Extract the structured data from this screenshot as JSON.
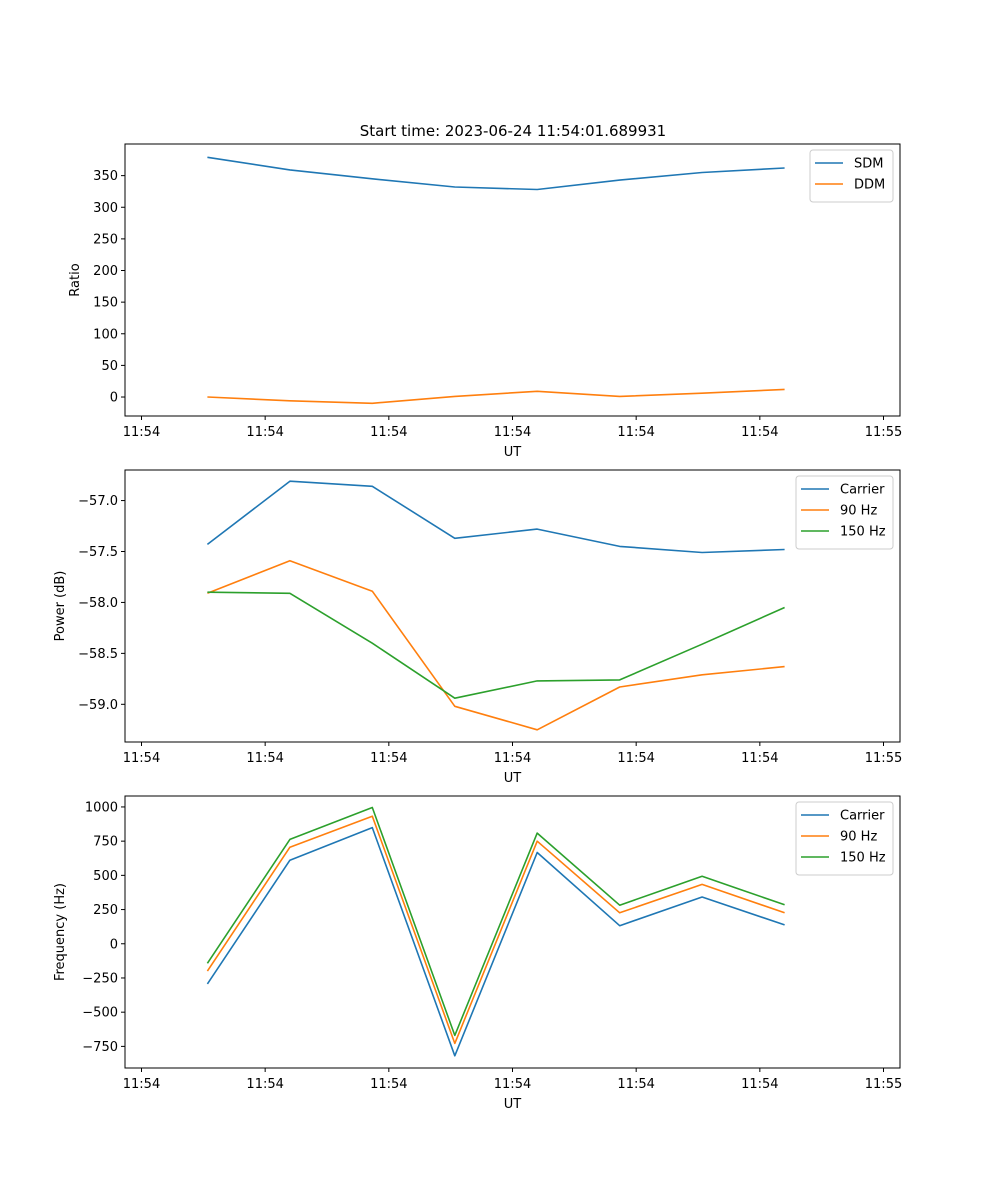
{
  "figure": {
    "title": "Start time: 2023-06-24 11:54:01.689931"
  },
  "chart_data": [
    {
      "type": "line",
      "xlabel": "UT",
      "ylabel": "Ratio",
      "x": [
        1,
        2,
        3,
        4,
        5,
        6,
        7,
        8
      ],
      "xticks": [
        0.2,
        1.7,
        3.2,
        4.7,
        6.2,
        7.7,
        9.2
      ],
      "xtick_labels": [
        "11:54",
        "11:54",
        "11:54",
        "11:54",
        "11:54",
        "11:54",
        "11:55"
      ],
      "xlim": [
        0.0,
        9.4
      ],
      "ylim": [
        -30,
        400
      ],
      "yticks": [
        0,
        50,
        100,
        150,
        200,
        250,
        300,
        350
      ],
      "ytick_labels": [
        "0",
        "50",
        "100",
        "150",
        "200",
        "250",
        "300",
        "350"
      ],
      "legend": "top-right",
      "series": [
        {
          "name": "SDM",
          "color": "#1f77b4",
          "values": [
            379,
            359,
            345,
            332,
            328,
            343,
            355,
            362
          ]
        },
        {
          "name": "DDM",
          "color": "#ff7f0e",
          "values": [
            0,
            -6,
            -10,
            1,
            9,
            1,
            6,
            12
          ]
        }
      ]
    },
    {
      "type": "line",
      "xlabel": "UT",
      "ylabel": "Power (dB)",
      "x": [
        1,
        2,
        3,
        4,
        5,
        6,
        7,
        8
      ],
      "xticks": [
        0.2,
        1.7,
        3.2,
        4.7,
        6.2,
        7.7,
        9.2
      ],
      "xtick_labels": [
        "11:54",
        "11:54",
        "11:54",
        "11:54",
        "11:54",
        "11:54",
        "11:55"
      ],
      "xlim": [
        0.0,
        9.4
      ],
      "ylim": [
        -59.37,
        -56.7
      ],
      "yticks": [
        -57.0,
        -57.5,
        -58.0,
        -58.5,
        -59.0
      ],
      "ytick_labels": [
        "−57.0",
        "−57.5",
        "−58.0",
        "−58.5",
        "−59.0"
      ],
      "legend": "top-right",
      "series": [
        {
          "name": "Carrier",
          "color": "#1f77b4",
          "values": [
            -57.43,
            -56.81,
            -56.86,
            -57.37,
            -57.28,
            -57.45,
            -57.51,
            -57.48
          ]
        },
        {
          "name": "90 Hz",
          "color": "#ff7f0e",
          "values": [
            -57.91,
            -57.59,
            -57.89,
            -59.02,
            -59.25,
            -58.83,
            -58.71,
            -58.63
          ]
        },
        {
          "name": "150 Hz",
          "color": "#2ca02c",
          "values": [
            -57.9,
            -57.91,
            -58.4,
            -58.94,
            -58.77,
            -58.76,
            -58.41,
            -58.05
          ]
        }
      ]
    },
    {
      "type": "line",
      "xlabel": "UT",
      "ylabel": "Frequency (Hz)",
      "x": [
        1,
        2,
        3,
        4,
        5,
        6,
        7,
        8
      ],
      "xticks": [
        0.2,
        1.7,
        3.2,
        4.7,
        6.2,
        7.7,
        9.2
      ],
      "xtick_labels": [
        "11:54",
        "11:54",
        "11:54",
        "11:54",
        "11:54",
        "11:54",
        "11:55"
      ],
      "xlim": [
        0.0,
        9.4
      ],
      "ylim": [
        -908,
        1080
      ],
      "yticks": [
        1000,
        750,
        500,
        250,
        0,
        -250,
        -500,
        -750
      ],
      "ytick_labels": [
        "1000",
        "750",
        "500",
        "250",
        "0",
        "−250",
        "−500",
        "−750"
      ],
      "legend": "top-right",
      "series": [
        {
          "name": "Carrier",
          "color": "#1f77b4",
          "values": [
            -293,
            611,
            849,
            -819,
            667,
            132,
            342,
            138
          ]
        },
        {
          "name": "90 Hz",
          "color": "#ff7f0e",
          "values": [
            -200,
            706,
            932,
            -728,
            750,
            226,
            434,
            226
          ]
        },
        {
          "name": "150 Hz",
          "color": "#2ca02c",
          "values": [
            -143,
            763,
            996,
            -670,
            809,
            282,
            493,
            285
          ]
        }
      ]
    }
  ]
}
